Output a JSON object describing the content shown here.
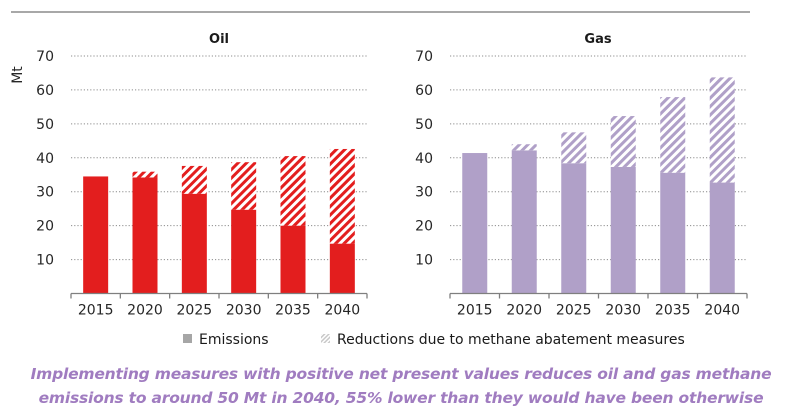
{
  "colors": {
    "oil": "#e31e1e",
    "gas": "#b0a0c8",
    "legend_emissions": "#a6a6a6",
    "legend_reductions": "#c8c8c8",
    "grid": "#8c8c8c",
    "caption": "#a07cc0"
  },
  "chart_data": [
    {
      "type": "bar",
      "stacked": true,
      "title": "Oil",
      "ylabel": "Mt",
      "xlabel": "",
      "ylim": [
        0,
        70
      ],
      "yticks": [
        10,
        20,
        30,
        40,
        50,
        60,
        70
      ],
      "ytick_labels": [
        "10",
        "20",
        "30",
        "40",
        "50",
        "60",
        "70"
      ],
      "grid": true,
      "categories": [
        "2015",
        "2020",
        "2025",
        "2030",
        "2035",
        "2040"
      ],
      "series": [
        {
          "name": "Emissions",
          "values": [
            34.5,
            34.2,
            29.4,
            24.7,
            20.0,
            14.7
          ]
        },
        {
          "name": "Reductions due to methane abatement measures",
          "values": [
            0,
            1.7,
            8.2,
            14.0,
            20.5,
            27.9
          ]
        }
      ]
    },
    {
      "type": "bar",
      "stacked": true,
      "title": "Gas",
      "ylabel": "",
      "xlabel": "",
      "ylim": [
        0,
        70
      ],
      "yticks": [
        10,
        20,
        30,
        40,
        50,
        60,
        70
      ],
      "ytick_labels": [
        "10",
        "20",
        "30",
        "40",
        "50",
        "60",
        "70"
      ],
      "grid": true,
      "categories": [
        "2015",
        "2020",
        "2025",
        "2030",
        "2035",
        "2040"
      ],
      "series": [
        {
          "name": "Emissions",
          "values": [
            41.4,
            42.2,
            38.4,
            37.3,
            35.6,
            32.7
          ]
        },
        {
          "name": "Reductions due to methane abatement measures",
          "values": [
            0,
            1.8,
            9.1,
            15.0,
            22.3,
            31.0
          ]
        }
      ]
    }
  ],
  "legend": {
    "placement": "bottom-center",
    "items": [
      {
        "label": "Emissions",
        "icon": "solid-square-icon"
      },
      {
        "label": "Reductions due to methane abatement measures",
        "icon": "hatched-square-icon"
      }
    ]
  },
  "caption": {
    "line1": "Implementing measures with positive net present values reduces oil and gas methane",
    "line2": "emissions to around 50 Mt in 2040, 55% lower than they would have been otherwise"
  }
}
